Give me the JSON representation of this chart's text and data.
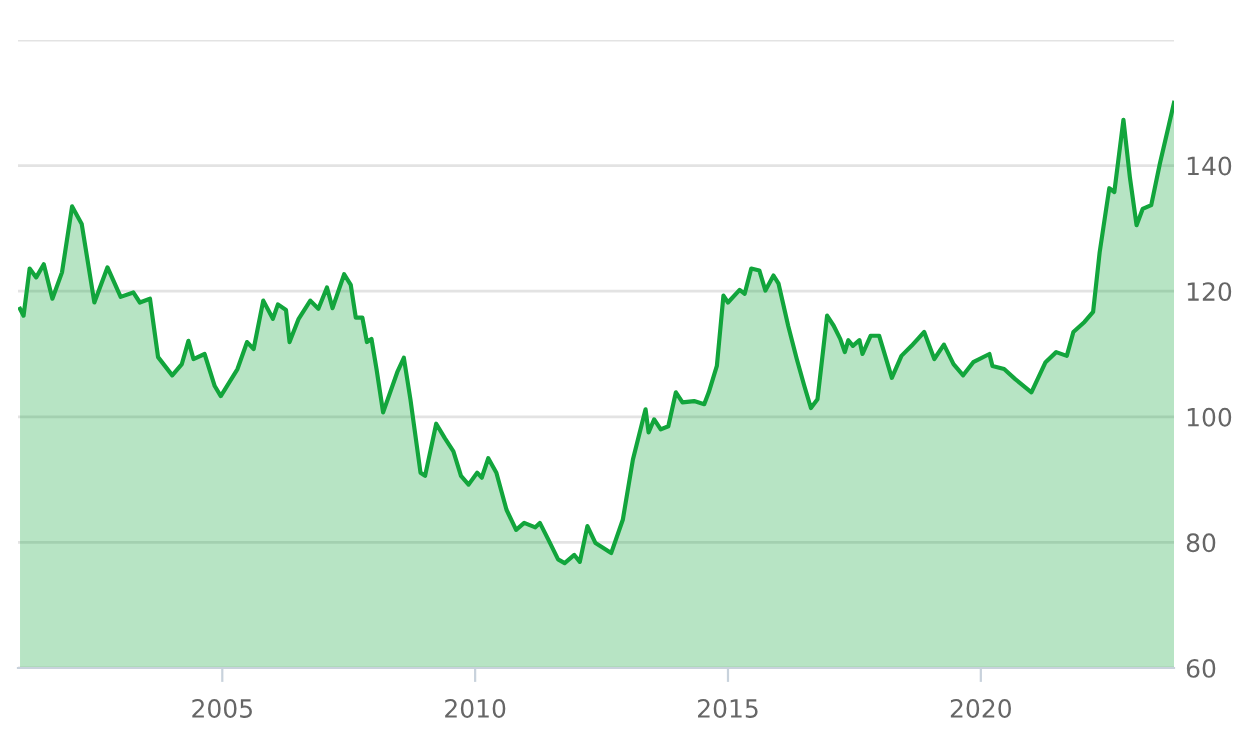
{
  "chart_data": {
    "type": "area",
    "x": [
      2001.0,
      2001.07,
      2001.19,
      2001.32,
      2001.47,
      2001.64,
      2001.83,
      2002.03,
      2002.22,
      2002.47,
      2002.73,
      2002.99,
      2003.24,
      2003.37,
      2003.57,
      2003.73,
      2004.01,
      2004.2,
      2004.33,
      2004.43,
      2004.65,
      2004.85,
      2004.97,
      2005.3,
      2005.49,
      2005.62,
      2005.81,
      2006.0,
      2006.1,
      2006.26,
      2006.33,
      2006.51,
      2006.74,
      2006.9,
      2007.07,
      2007.18,
      2007.41,
      2007.54,
      2007.64,
      2007.77,
      2007.86,
      2007.95,
      2008.05,
      2008.18,
      2008.46,
      2008.59,
      2008.72,
      2008.92,
      2009.01,
      2009.23,
      2009.4,
      2009.57,
      2009.72,
      2009.87,
      2010.04,
      2010.13,
      2010.26,
      2010.42,
      2010.62,
      2010.81,
      2010.97,
      2011.19,
      2011.28,
      2011.45,
      2011.64,
      2011.77,
      2011.96,
      2012.07,
      2012.22,
      2012.38,
      2012.69,
      2012.92,
      2013.12,
      2013.37,
      2013.43,
      2013.54,
      2013.67,
      2013.82,
      2013.97,
      2014.1,
      2014.33,
      2014.53,
      2014.62,
      2014.78,
      2014.91,
      2015.0,
      2015.23,
      2015.33,
      2015.46,
      2015.62,
      2015.74,
      2015.9,
      2016.0,
      2016.19,
      2016.36,
      2016.51,
      2016.64,
      2016.77,
      2016.96,
      2017.09,
      2017.22,
      2017.31,
      2017.38,
      2017.47,
      2017.6,
      2017.66,
      2017.82,
      2017.99,
      2018.24,
      2018.43,
      2018.63,
      2018.88,
      2019.08,
      2019.27,
      2019.46,
      2019.65,
      2019.85,
      2020.17,
      2020.23,
      2020.46,
      2020.68,
      2021.0,
      2021.28,
      2021.49,
      2021.7,
      2021.83,
      2022.05,
      2022.22,
      2022.35,
      2022.54,
      2022.64,
      2022.82,
      2022.95,
      2023.08,
      2023.2,
      2023.37,
      2023.54,
      2023.72,
      2023.82
    ],
    "values": [
      117.2,
      116.1,
      123.6,
      122.2,
      124.3,
      118.8,
      123.0,
      133.5,
      130.7,
      118.2,
      123.8,
      119.1,
      119.8,
      118.2,
      118.8,
      109.5,
      106.6,
      108.4,
      112.1,
      109.2,
      110.0,
      104.9,
      103.3,
      107.6,
      111.9,
      110.8,
      118.5,
      115.6,
      117.9,
      117.0,
      111.9,
      115.6,
      118.5,
      117.2,
      120.6,
      117.3,
      122.7,
      121.0,
      115.8,
      115.8,
      111.9,
      112.4,
      107.6,
      100.7,
      107.1,
      109.4,
      102.8,
      91.1,
      90.6,
      98.9,
      96.6,
      94.5,
      90.6,
      89.2,
      91.1,
      90.3,
      93.4,
      91.1,
      85.2,
      82.0,
      83.1,
      82.4,
      83.1,
      80.4,
      77.3,
      76.7,
      78.0,
      76.9,
      82.6,
      79.9,
      78.3,
      83.6,
      93.2,
      101.2,
      97.5,
      99.6,
      98.0,
      98.5,
      103.9,
      102.3,
      102.5,
      102.0,
      103.9,
      108.1,
      119.3,
      118.2,
      120.2,
      119.6,
      123.6,
      123.3,
      120.1,
      122.5,
      121.2,
      114.5,
      109.2,
      104.9,
      101.4,
      102.8,
      116.1,
      114.5,
      112.4,
      110.3,
      112.2,
      111.3,
      112.2,
      110.0,
      112.9,
      112.9,
      106.2,
      109.7,
      111.3,
      113.5,
      109.2,
      111.5,
      108.4,
      106.6,
      108.7,
      110.0,
      108.1,
      107.6,
      106.0,
      103.9,
      108.7,
      110.3,
      109.7,
      113.5,
      115.1,
      116.7,
      126.2,
      136.4,
      135.8,
      147.3,
      138.0,
      130.5,
      133.1,
      133.7,
      140.3,
      146.5,
      150.0
    ],
    "color": "#12a53c",
    "xlim": [
      2000.96,
      2023.82
    ],
    "xticks": [
      2005,
      2010,
      2015,
      2020
    ],
    "ylim": [
      60,
      160
    ],
    "yticks": [
      60,
      80,
      100,
      120,
      140,
      {
        "value": 160,
        "label": null
      }
    ],
    "grid": "y",
    "legend": false
  }
}
